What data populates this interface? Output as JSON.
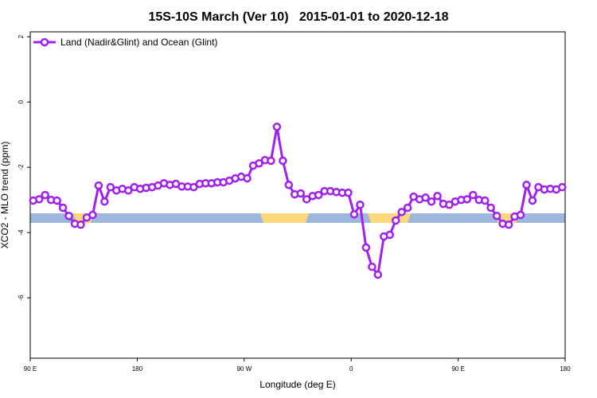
{
  "chart_data": {
    "type": "line",
    "title": "15S-10S March (Ver 10)   2015-01-01 to 2020-12-18",
    "xlabel": "Longitude (deg E)",
    "ylabel": "XCO2 - MLO trend (ppm)",
    "xlim": [
      90,
      540
    ],
    "xticks": [
      {
        "value": 90,
        "label": "90 E"
      },
      {
        "value": 180,
        "label": "180"
      },
      {
        "value": 270,
        "label": "90 W"
      },
      {
        "value": 360,
        "label": "0"
      },
      {
        "value": 450,
        "label": "90 E"
      },
      {
        "value": 540,
        "label": "180"
      }
    ],
    "ylim": [
      -7.85,
      2.15
    ],
    "yticks": [
      2,
      0,
      -2,
      -4,
      -6
    ],
    "legend": "top-left",
    "x": [
      92.5,
      97.5,
      102.5,
      107.5,
      112.5,
      117.5,
      122.5,
      127.5,
      132.5,
      137.5,
      142.5,
      147.5,
      152.5,
      157.5,
      162.5,
      167.5,
      172.5,
      177.5,
      182.5,
      187.5,
      192.5,
      197.5,
      202.5,
      207.5,
      212.5,
      217.5,
      222.5,
      227.5,
      232.5,
      237.5,
      242.5,
      247.5,
      252.5,
      257.5,
      262.5,
      267.5,
      272.5,
      277.5,
      282.5,
      287.5,
      292.5,
      297.5,
      302.5,
      307.5,
      312.5,
      317.5,
      322.5,
      327.5,
      332.5,
      337.5,
      342.5,
      347.5,
      352.5,
      357.5,
      362.5,
      367.5,
      372.5,
      377.5,
      382.5,
      387.5,
      392.5,
      397.5,
      402.5,
      407.5,
      412.5,
      417.5,
      422.5,
      427.5,
      432.5,
      437.5,
      442.5,
      447.5,
      452.5,
      457.5,
      462.5,
      467.5,
      472.5,
      477.5,
      482.5,
      487.5,
      492.5,
      497.5,
      502.5,
      507.5,
      512.5,
      517.5,
      522.5,
      527.5,
      532.5,
      537.5
    ],
    "series": [
      {
        "name": "Land (Nadir&Glint) and Ocean (Glint)",
        "color": "#a020f0",
        "values": [
          -3.02,
          -2.98,
          -2.85,
          -3.0,
          -3.02,
          -3.24,
          -3.49,
          -3.73,
          -3.76,
          -3.54,
          -3.46,
          -2.56,
          -3.05,
          -2.61,
          -2.71,
          -2.66,
          -2.71,
          -2.61,
          -2.66,
          -2.63,
          -2.61,
          -2.56,
          -2.49,
          -2.54,
          -2.51,
          -2.59,
          -2.59,
          -2.61,
          -2.51,
          -2.49,
          -2.49,
          -2.46,
          -2.46,
          -2.41,
          -2.34,
          -2.29,
          -2.34,
          -1.95,
          -1.88,
          -1.78,
          -1.8,
          -0.76,
          -1.8,
          -2.54,
          -2.83,
          -2.8,
          -2.98,
          -2.88,
          -2.85,
          -2.73,
          -2.73,
          -2.76,
          -2.78,
          -2.78,
          -3.44,
          -3.15,
          -4.46,
          -5.05,
          -5.29,
          -4.12,
          -4.07,
          -3.63,
          -3.37,
          -3.24,
          -2.9,
          -2.98,
          -2.93,
          -3.05,
          -2.88,
          -3.12,
          -3.15,
          -3.05,
          -3.0,
          -2.98,
          -2.85,
          -3.0,
          -3.02,
          -3.24,
          -3.49,
          -3.73,
          -3.76,
          -3.51,
          -3.46,
          -2.54,
          -3.02,
          -2.61,
          -2.68,
          -2.66,
          -2.68,
          -2.61
        ]
      }
    ]
  }
}
